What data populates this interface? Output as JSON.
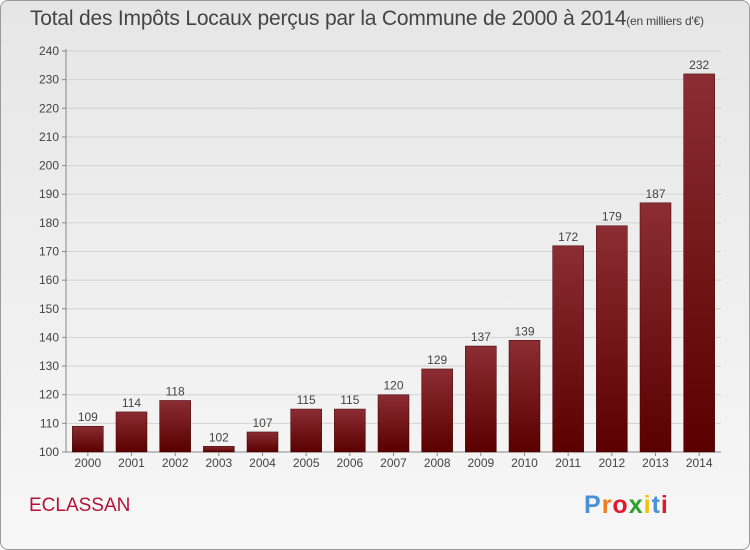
{
  "title": "Total des Impôts Locaux perçus par la Commune de 2000 à 2014",
  "title_unit": "(en milliers d'€)",
  "commune": "ECLASSAN",
  "logo_text": "Proxiti",
  "colors": {
    "bar_top": "#8b2d33",
    "bar_bottom": "#5a0000",
    "commune": "#b5123a",
    "logo": [
      "#4a90d9",
      "#f07c1e",
      "#e3182d",
      "#2ca02c",
      "#f2c200",
      "#4a90d9",
      "#e3182d"
    ]
  },
  "chart_data": {
    "type": "bar",
    "title": "Total des Impôts Locaux perçus par la Commune de 2000 à 2014",
    "xlabel": "",
    "ylabel": "",
    "ylim": [
      100,
      240
    ],
    "yticks": [
      100,
      110,
      120,
      130,
      140,
      150,
      160,
      170,
      180,
      190,
      200,
      210,
      220,
      230,
      240
    ],
    "grid": true,
    "categories": [
      "2000",
      "2001",
      "2002",
      "2003",
      "2004",
      "2005",
      "2006",
      "2007",
      "2008",
      "2009",
      "2010",
      "2011",
      "2012",
      "2013",
      "2014"
    ],
    "values": [
      109,
      114,
      118,
      102,
      107,
      115,
      115,
      120,
      129,
      137,
      139,
      172,
      179,
      187,
      232
    ]
  }
}
